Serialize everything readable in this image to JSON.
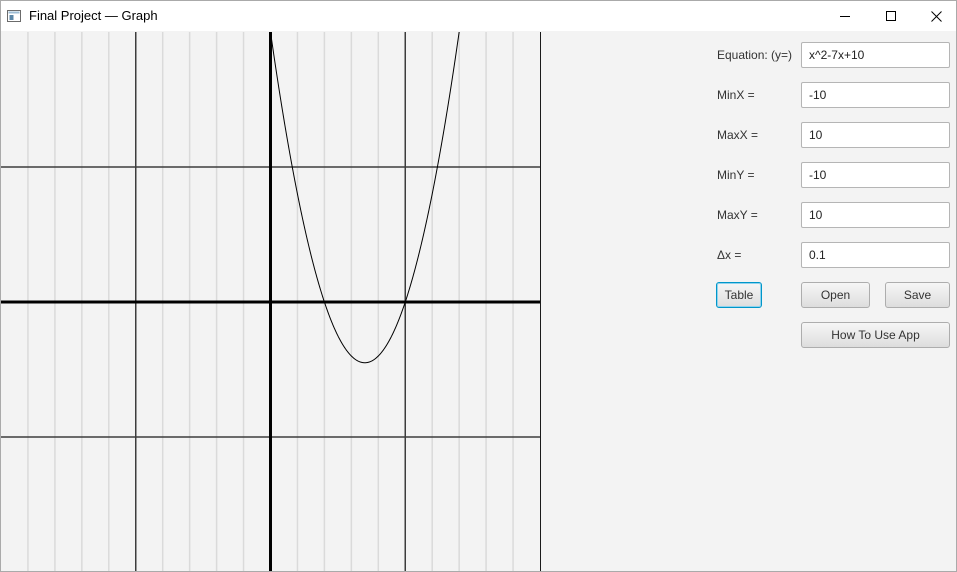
{
  "window": {
    "title": "Final Project — Graph",
    "controls": [
      "minimize-icon",
      "maximize-icon",
      "close-icon"
    ]
  },
  "form": {
    "equation": {
      "label": "Equation: (y=)",
      "value": "x^2-7x+10"
    },
    "min_x": {
      "label": "MinX =",
      "value": "-10"
    },
    "max_x": {
      "label": "MaxX =",
      "value": "10"
    },
    "min_y": {
      "label": "MinY =",
      "value": "-10"
    },
    "max_y": {
      "label": "MaxY =",
      "value": "10"
    },
    "delta_x": {
      "label": "Δx =",
      "value": "0.1"
    }
  },
  "buttons": {
    "table": "Table",
    "open": "Open",
    "save": "Save",
    "help": "How To Use App"
  },
  "graph": {
    "equation": "x^2-7x+10",
    "x_range": [
      -10,
      10
    ],
    "y_range": [
      -10,
      10
    ],
    "step": 0.1,
    "major_grid_every": 5,
    "minor_grid_every": 1,
    "grid": true,
    "colors": {
      "background": "#f3f3f3",
      "minor_grid": "#dadada",
      "major_grid": "#3c3c3c",
      "axis": "#000000",
      "curve": "#000000"
    }
  }
}
